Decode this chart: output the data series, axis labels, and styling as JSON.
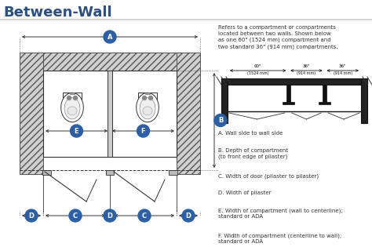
{
  "title": "Between-Wall",
  "title_color": "#2c5082",
  "bg_color": "#ffffff",
  "line_color": "#333333",
  "blue": "#2c5fa8",
  "hatch_fc": "#d8d8d8",
  "description": "Refers to a compartment or compartments\nlocated between two walls. Shown below\nas one 60\" (1524 mm) compartment and\ntwo standard 36\" (914 mm) compartments.",
  "legend_items": [
    [
      "A.",
      "Wall side to wall side"
    ],
    [
      "B.",
      "Depth of compartment\n(to front edge of pilaster)"
    ],
    [
      "C.",
      "Width of door (pilaster to pilaster)"
    ],
    [
      "D.",
      "Width of pilaster"
    ],
    [
      "E.",
      "Width of compartment (wall to centerline);\nstandard or ADA"
    ],
    [
      "F.",
      "Width of compartment (centerline to wall);\nstandard or ADA"
    ]
  ]
}
